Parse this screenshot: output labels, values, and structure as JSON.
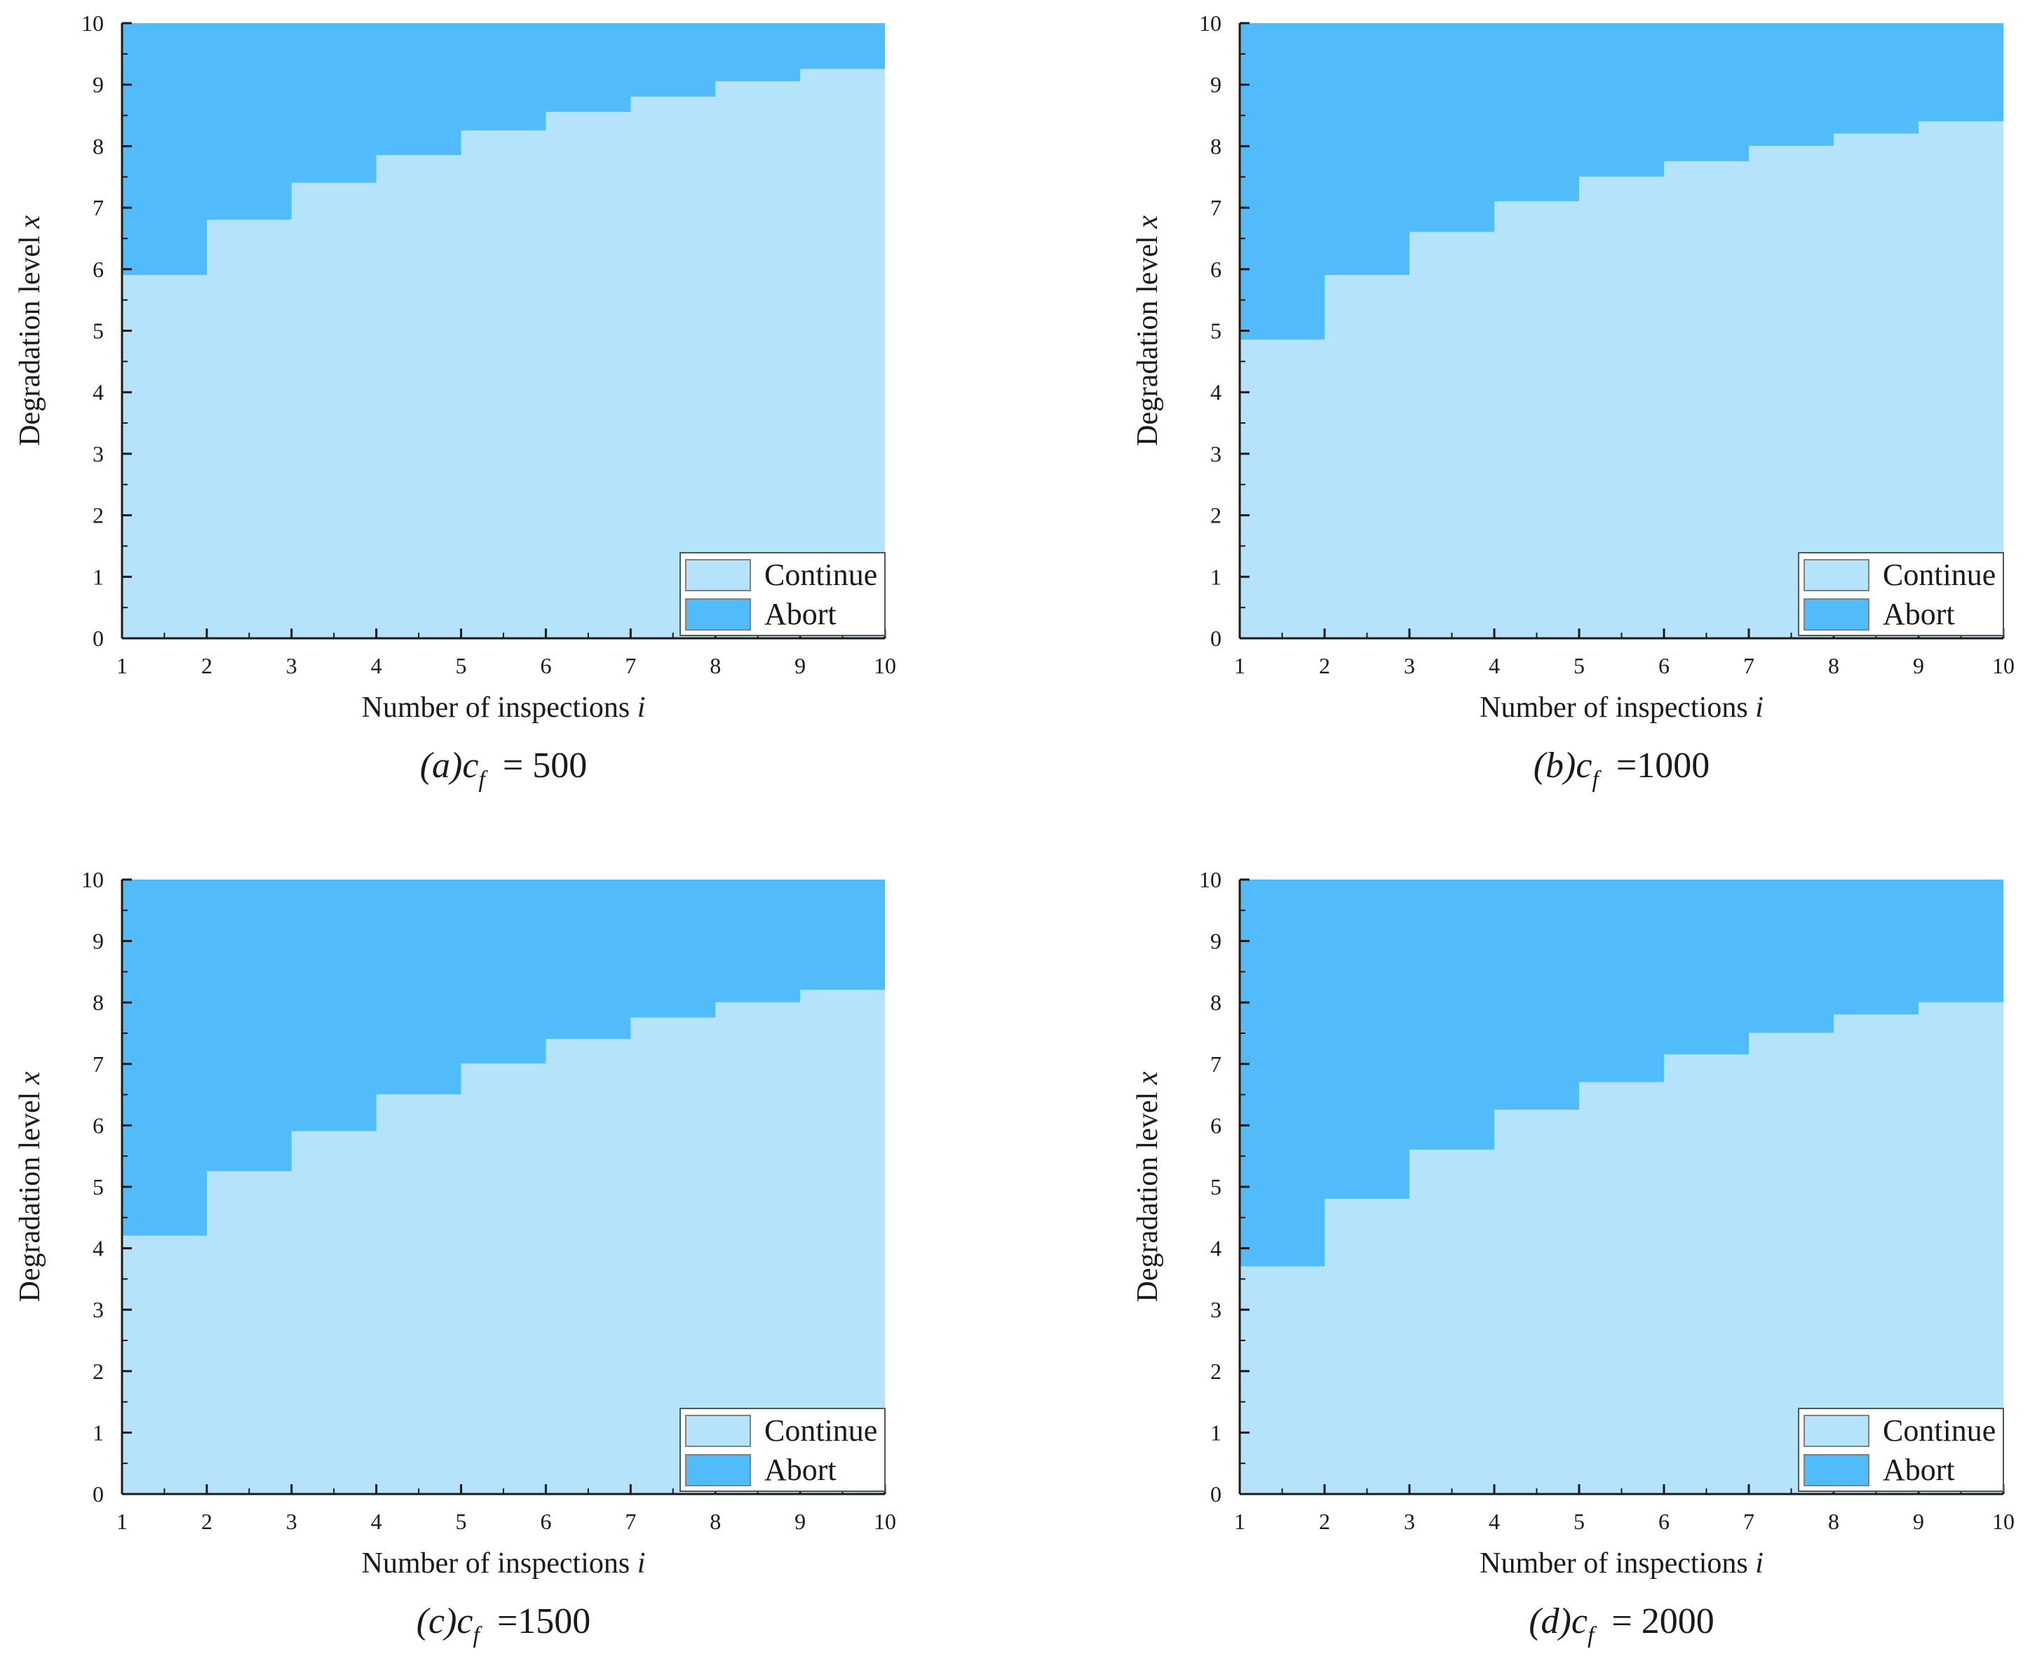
{
  "colors": {
    "continue": "#b5e3fc",
    "abort": "#52bcfb",
    "axis": "#1a1a1a"
  },
  "chart_data": [
    {
      "type": "area",
      "panel": "a",
      "caption": {
        "paren": "(a)",
        "param": "c",
        "sub": "f",
        "value": "= 500"
      },
      "xlabel": {
        "text": "Number of inspections ",
        "var": "i"
      },
      "ylabel": {
        "text": "Degradation level ",
        "var": "x"
      },
      "xlim": [
        1,
        10
      ],
      "ylim": [
        0,
        10
      ],
      "xticks": [
        "1",
        "2",
        "3",
        "4",
        "5",
        "6",
        "7",
        "8",
        "9",
        "10"
      ],
      "yticks": [
        "0",
        "1",
        "2",
        "3",
        "4",
        "5",
        "6",
        "7",
        "8",
        "9",
        "10"
      ],
      "legend": {
        "position": "bottom-right",
        "items": [
          "Continue",
          "Abort"
        ]
      },
      "threshold": {
        "x": [
          1,
          2,
          3,
          4,
          5,
          6,
          7,
          8,
          9,
          10
        ],
        "y": [
          5.9,
          6.8,
          7.4,
          7.85,
          8.25,
          8.55,
          8.8,
          9.05,
          9.25,
          9.25
        ]
      }
    },
    {
      "type": "area",
      "panel": "b",
      "caption": {
        "paren": "(b)",
        "param": "c",
        "sub": "f",
        "value": "=1000"
      },
      "xlabel": {
        "text": "Number of inspections ",
        "var": "i"
      },
      "ylabel": {
        "text": "Degradation level ",
        "var": "x"
      },
      "xlim": [
        1,
        10
      ],
      "ylim": [
        0,
        10
      ],
      "xticks": [
        "1",
        "2",
        "3",
        "4",
        "5",
        "6",
        "7",
        "8",
        "9",
        "10"
      ],
      "yticks": [
        "0",
        "1",
        "2",
        "3",
        "4",
        "5",
        "6",
        "7",
        "8",
        "9",
        "10"
      ],
      "legend": {
        "position": "bottom-right",
        "items": [
          "Continue",
          "Abort"
        ]
      },
      "threshold": {
        "x": [
          1,
          2,
          3,
          4,
          5,
          6,
          7,
          8,
          9,
          10
        ],
        "y": [
          4.85,
          5.9,
          6.6,
          7.1,
          7.5,
          7.75,
          8.0,
          8.2,
          8.4,
          8.4
        ]
      }
    },
    {
      "type": "area",
      "panel": "c",
      "caption": {
        "paren": "(c)",
        "param": "c",
        "sub": "f",
        "value": "=1500"
      },
      "xlabel": {
        "text": "Number of inspections ",
        "var": "i"
      },
      "ylabel": {
        "text": "Degradation level ",
        "var": "x"
      },
      "xlim": [
        1,
        10
      ],
      "ylim": [
        0,
        10
      ],
      "xticks": [
        "1",
        "2",
        "3",
        "4",
        "5",
        "6",
        "7",
        "8",
        "9",
        "10"
      ],
      "yticks": [
        "0",
        "1",
        "2",
        "3",
        "4",
        "5",
        "6",
        "7",
        "8",
        "9",
        "10"
      ],
      "legend": {
        "position": "bottom-right",
        "items": [
          "Continue",
          "Abort"
        ]
      },
      "threshold": {
        "x": [
          1,
          2,
          3,
          4,
          5,
          6,
          7,
          8,
          9,
          10
        ],
        "y": [
          4.2,
          5.25,
          5.9,
          6.5,
          7.0,
          7.4,
          7.75,
          8.0,
          8.2,
          8.2
        ]
      }
    },
    {
      "type": "area",
      "panel": "d",
      "caption": {
        "paren": "(d)",
        "param": "c",
        "sub": "f",
        "value": "= 2000"
      },
      "xlabel": {
        "text": "Number of inspections ",
        "var": "i"
      },
      "ylabel": {
        "text": "Degradation level ",
        "var": "x"
      },
      "xlim": [
        1,
        10
      ],
      "ylim": [
        0,
        10
      ],
      "xticks": [
        "1",
        "2",
        "3",
        "4",
        "5",
        "6",
        "7",
        "8",
        "9",
        "10"
      ],
      "yticks": [
        "0",
        "1",
        "2",
        "3",
        "4",
        "5",
        "6",
        "7",
        "8",
        "9",
        "10"
      ],
      "legend": {
        "position": "bottom-right",
        "items": [
          "Continue",
          "Abort"
        ]
      },
      "threshold": {
        "x": [
          1,
          2,
          3,
          4,
          5,
          6,
          7,
          8,
          9,
          10
        ],
        "y": [
          3.7,
          4.8,
          5.6,
          6.25,
          6.7,
          7.15,
          7.5,
          7.8,
          8.0,
          8.0
        ]
      }
    }
  ]
}
